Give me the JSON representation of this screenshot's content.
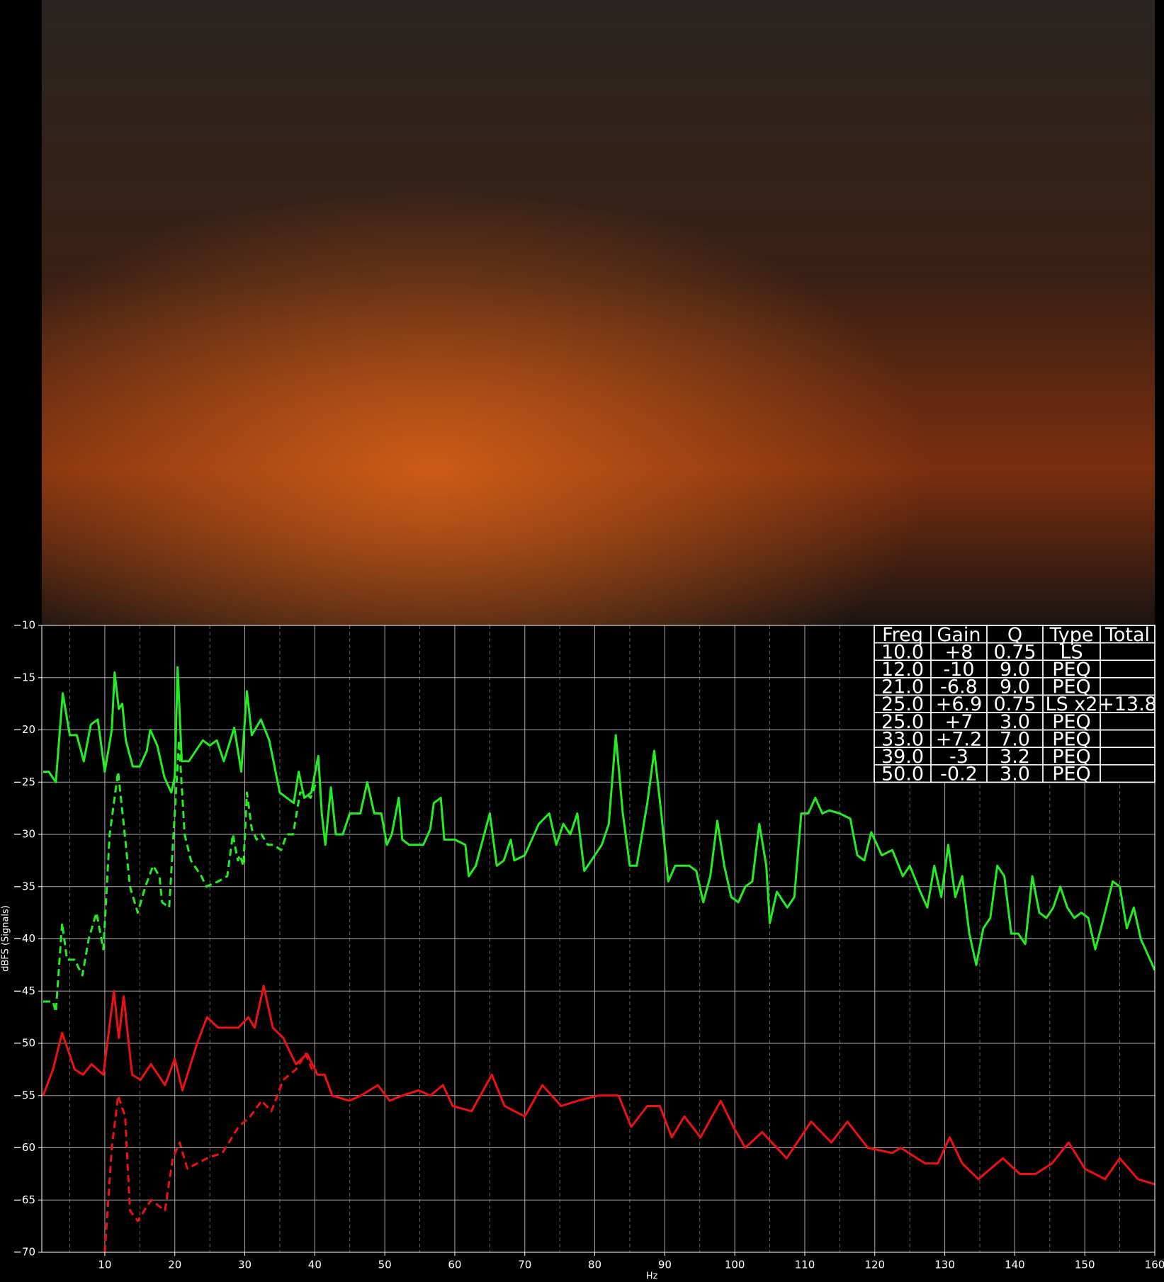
{
  "chart_data": {
    "type": "line",
    "ylabel": "dBFS (Signals)",
    "xlabel": "Hz",
    "xlim": [
      1,
      160
    ],
    "ylim": [
      -70,
      -10
    ],
    "xticks": [
      10,
      20,
      30,
      40,
      50,
      60,
      70,
      80,
      90,
      100,
      110,
      120,
      130,
      140,
      150,
      160
    ],
    "xminor": [
      5,
      15,
      25,
      35,
      45,
      55,
      65,
      75,
      85,
      95,
      105,
      115,
      125,
      135,
      145,
      155
    ],
    "yticks": [
      {
        "value": -10,
        "label": "−10"
      },
      {
        "value": -15,
        "label": "−15"
      },
      {
        "value": -20,
        "label": "−20"
      },
      {
        "value": -25,
        "label": "−25"
      },
      {
        "value": -30,
        "label": "−30"
      },
      {
        "value": -35,
        "label": "−35"
      },
      {
        "value": -40,
        "label": "−40"
      },
      {
        "value": -45,
        "label": "−45"
      },
      {
        "value": -50,
        "label": "−50"
      },
      {
        "value": -55,
        "label": "−55"
      },
      {
        "value": -60,
        "label": "−60"
      },
      {
        "value": -65,
        "label": "−65"
      },
      {
        "value": -70,
        "label": "−70"
      }
    ],
    "grid": true,
    "series": [
      {
        "color": "#22ee22",
        "dash": false,
        "x": [
          1.2,
          2,
          3,
          4,
          5,
          6,
          7,
          8,
          9,
          10,
          11,
          11.4,
          12,
          12.5,
          13,
          14,
          15,
          16,
          16.5,
          17.5,
          18.5,
          19.5,
          20,
          20.4,
          21,
          22,
          24,
          25,
          26,
          27,
          28.5,
          29.5,
          30.3,
          31,
          32.3,
          33.5,
          35,
          36,
          37,
          37.7,
          38.5,
          39.5,
          40.5,
          41,
          41.5,
          42.3,
          43,
          44,
          45,
          46.5,
          47.5,
          48.5,
          49.5,
          50.3,
          51,
          52,
          52.5,
          53.5,
          54.5,
          55.5,
          56.5,
          57,
          58,
          58.5,
          60,
          61.5,
          62,
          63,
          65,
          66,
          67,
          68,
          68.5,
          70,
          72,
          73.5,
          74.5,
          75.5,
          76.5,
          77.5,
          78.5,
          80,
          81,
          82,
          83,
          84,
          85,
          86,
          87.5,
          88.5,
          89.5,
          90.5,
          91.5,
          92.5,
          93.5,
          94.5,
          95.5,
          96.5,
          97.5,
          98.5,
          99.5,
          100.5,
          101.5,
          102.5,
          103.5,
          104.5,
          105,
          106,
          107.5,
          108.5,
          109.5,
          110.5,
          111.5,
          112.5,
          113.5,
          115,
          116.5,
          117.5,
          118.5,
          119.5,
          121,
          122.5,
          124,
          125,
          126.5,
          127.5,
          128.5,
          129.5,
          130.5,
          131.5,
          132.5,
          133.5,
          134.5,
          135.5,
          136.5,
          137.5,
          138.5,
          139.5,
          140.5,
          141.5,
          142.5,
          143.5,
          144.5,
          145.5,
          146.5,
          147.5,
          148.5,
          149.5,
          150.5,
          151.5,
          152.5,
          154,
          155,
          156,
          157,
          158,
          160
        ],
        "values": [
          -24,
          -24,
          -25,
          -16.5,
          -20.5,
          -20.5,
          -23,
          -19.5,
          -19,
          -24,
          -20,
          -14.5,
          -18,
          -17.5,
          -21,
          -23.5,
          -23.5,
          -22,
          -20,
          -21.5,
          -24.5,
          -26,
          -24.5,
          -14,
          -23,
          -23,
          -21,
          -21.5,
          -21,
          -23,
          -19.8,
          -24,
          -16.3,
          -20.5,
          -19,
          -21,
          -26,
          -26.5,
          -27,
          -24,
          -26.5,
          -26,
          -22.5,
          -28,
          -31,
          -25.5,
          -30,
          -30,
          -28,
          -28,
          -25,
          -28,
          -28,
          -31,
          -30,
          -26.5,
          -30.5,
          -31,
          -31,
          -31,
          -29.5,
          -27,
          -26.5,
          -30.5,
          -30.5,
          -31,
          -34,
          -33,
          -28,
          -33,
          -32.5,
          -30.5,
          -32.5,
          -32,
          -29,
          -28,
          -31,
          -29,
          -30,
          -28,
          -33.5,
          -32,
          -31,
          -29,
          -20.5,
          -28,
          -33,
          -33,
          -27,
          -22,
          -28,
          -34.5,
          -33,
          -33,
          -33,
          -33.5,
          -36.5,
          -34,
          -28.7,
          -33,
          -36,
          -36.5,
          -35,
          -34.5,
          -29,
          -33,
          -38.5,
          -35.5,
          -37,
          -36,
          -28,
          -28,
          -26.5,
          -28,
          -27.7,
          -28,
          -28.5,
          -32,
          -32.5,
          -29.8,
          -32,
          -31.5,
          -34,
          -33,
          -35.5,
          -37,
          -33,
          -36,
          -31,
          -36,
          -34,
          -39.5,
          -42.5,
          -39,
          -38,
          -33,
          -34,
          -39.5,
          -39.5,
          -40.5,
          -34,
          -37.5,
          -38,
          -37,
          -35,
          -37,
          -38,
          -37.5,
          -38,
          -41,
          -38.5,
          -34.5,
          -35,
          -39,
          -37,
          -40,
          -43
        ]
      },
      {
        "color": "#22ee22",
        "dash": true,
        "x": [
          1.2,
          2.6,
          3.0,
          3.9,
          4.6,
          5.7,
          6.8,
          7.7,
          8.8,
          9.8,
          10.7,
          11.9,
          12.7,
          13.6,
          14.7,
          15.8,
          16.9,
          17.8,
          18.2,
          19.2,
          20,
          20.6,
          21.4,
          22.3,
          23.8,
          24.5,
          26.2,
          27.5,
          28.3,
          29,
          29.3,
          29.8,
          30.3,
          31,
          31.7,
          32.4,
          33.3,
          34.1,
          35.2,
          36,
          36.9,
          37.9,
          38.7,
          39.4,
          40.2
        ],
        "values": [
          -46,
          -46,
          -47,
          -38.5,
          -42,
          -42,
          -43.5,
          -40,
          -37.5,
          -41,
          -30,
          -24,
          -29,
          -35,
          -37.5,
          -35,
          -33,
          -34,
          -36.5,
          -37,
          -28,
          -21,
          -30,
          -32.5,
          -34,
          -35,
          -34.5,
          -34,
          -30,
          -32.5,
          -32,
          -33,
          -26,
          -29.5,
          -30.5,
          -30,
          -31,
          -31,
          -31.5,
          -30,
          -30,
          -26,
          -26,
          -26.5,
          -25
        ]
      },
      {
        "color": "#ee1111",
        "dash": false,
        "x": [
          1.2,
          2.6,
          3.9,
          5.7,
          6.9,
          8.1,
          9.8,
          11.3,
          12,
          12.7,
          13.9,
          15.1,
          16.6,
          18.6,
          20,
          21.1,
          23.2,
          24.6,
          26.2,
          29.1,
          30.5,
          31.4,
          32.7,
          34,
          35.5,
          37.3,
          38.9,
          40.4,
          41.4,
          42.5,
          44.9,
          46.6,
          49,
          50.7,
          52.5,
          54.8,
          56.5,
          58.3,
          59.7,
          62.4,
          65.3,
          67.1,
          70,
          72.5,
          75.2,
          77.6,
          80.5,
          83.4,
          85.2,
          87.5,
          89.3,
          91,
          92.8,
          95.1,
          98,
          99.8,
          101.5,
          103.9,
          107.4,
          110.9,
          113.8,
          116.1,
          119,
          122.5,
          123.7,
          127.2,
          129,
          130.7,
          132.5,
          134.8,
          138.3,
          140.7,
          143,
          145.3,
          147.7,
          150,
          152.9,
          155,
          157.6,
          160
        ],
        "values": [
          -55,
          -52.5,
          -49,
          -52.5,
          -53,
          -52,
          -53,
          -45,
          -49.5,
          -45.5,
          -53,
          -53.5,
          -52,
          -54,
          -51.5,
          -54.5,
          -50,
          -47.5,
          -48.5,
          -48.5,
          -47.5,
          -48.5,
          -44.5,
          -48.5,
          -49.5,
          -52,
          -51,
          -53,
          -53,
          -55,
          -55.5,
          -55,
          -54,
          -55.5,
          -55,
          -54.5,
          -55,
          -54,
          -56,
          -56.5,
          -53,
          -56,
          -57,
          -54,
          -56,
          -55.5,
          -55,
          -55,
          -58,
          -56,
          -56,
          -59,
          -57,
          -59,
          -55.5,
          -58,
          -60,
          -58.5,
          -61,
          -57.5,
          -59.5,
          -57.5,
          -60,
          -60.5,
          -60,
          -61.5,
          -61.5,
          -59,
          -61.5,
          -63,
          -61,
          -62.5,
          -62.5,
          -61.5,
          -59.5,
          -62,
          -63,
          -61,
          -63,
          -63.5
        ]
      },
      {
        "color": "#ee1111",
        "dash": true,
        "x": [
          10,
          11,
          11.9,
          12.9,
          13.6,
          14.7,
          16.6,
          18.6,
          19.7,
          20.7,
          21.8,
          23.2,
          24.6,
          26.8,
          29.1,
          30.8,
          32.4,
          33.8,
          35.5,
          37.3,
          38.7,
          39.6
        ],
        "values": [
          -70,
          -60,
          -55,
          -57,
          -66,
          -67,
          -65,
          -66,
          -61,
          -59.5,
          -62,
          -61.5,
          -61,
          -60.5,
          -58,
          -57,
          -55.5,
          -56.5,
          -53.5,
          -52.5,
          -51,
          -52.5
        ]
      }
    ],
    "table": {
      "columns": [
        "Freq",
        "Gain",
        "Q",
        "Type",
        "Total"
      ],
      "rows": [
        [
          "10.0",
          "+8",
          "0.75",
          "LS",
          null
        ],
        [
          "12.0",
          "-10",
          "9.0",
          "PEQ",
          null
        ],
        [
          "21.0",
          "-6.8",
          "9.0",
          "PEQ",
          null
        ],
        [
          "25.0",
          "+6.9",
          "0.75",
          "LS x2",
          "+13.8"
        ],
        [
          "25.0",
          "+7",
          "3.0",
          "PEQ",
          null
        ],
        [
          "33.0",
          "+7.2",
          "7.0",
          "PEQ",
          null
        ],
        [
          "39.0",
          "-3",
          "3.2",
          "PEQ",
          null
        ],
        [
          "50.0",
          "-0.2",
          "3.0",
          "PEQ",
          null
        ]
      ]
    }
  }
}
